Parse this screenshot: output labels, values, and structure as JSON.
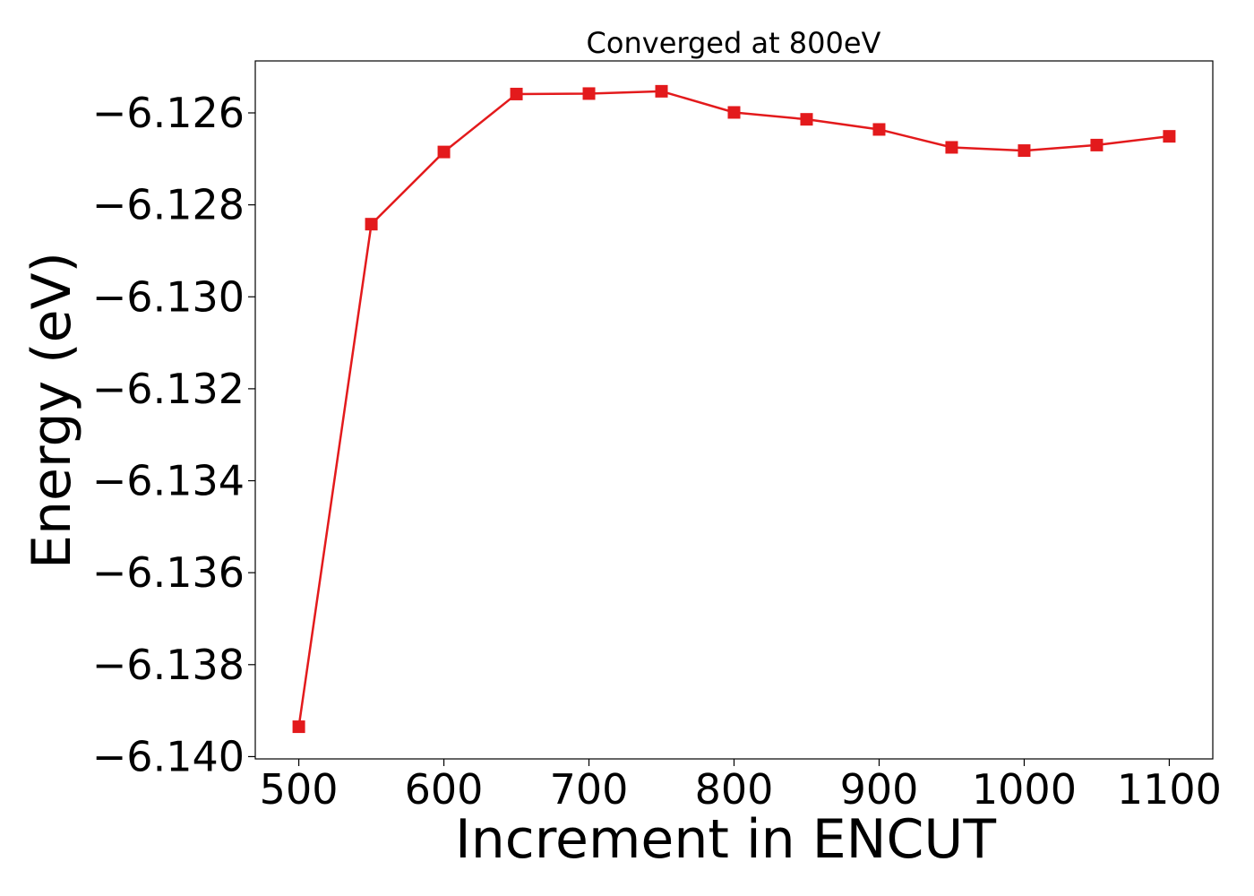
{
  "chart_data": {
    "type": "line",
    "title": "Converged at 800eV",
    "xlabel": "Increment in ENCUT",
    "ylabel": "Energy (eV)",
    "xlim": [
      470,
      1130
    ],
    "ylim": [
      -6.14005,
      -6.12487
    ],
    "xticks": [
      500,
      600,
      700,
      800,
      900,
      1000,
      1100
    ],
    "xtick_labels": [
      "500",
      "600",
      "700",
      "800",
      "900",
      "1000",
      "1100"
    ],
    "yticks": [
      -6.126,
      -6.128,
      -6.13,
      -6.132,
      -6.134,
      -6.136,
      -6.138,
      -6.14
    ],
    "ytick_labels": [
      "−6.126",
      "−6.128",
      "−6.130",
      "−6.132",
      "−6.134",
      "−6.136",
      "−6.138",
      "−6.140"
    ],
    "grid": false,
    "series": [
      {
        "color": "#e31a1c",
        "marker": "square",
        "x": [
          500,
          550,
          600,
          650,
          700,
          750,
          800,
          850,
          900,
          950,
          1000,
          1050,
          1100
        ],
        "y": [
          -6.13935,
          -6.12842,
          -6.12685,
          -6.12559,
          -6.12558,
          -6.12553,
          -6.12599,
          -6.12614,
          -6.12636,
          -6.12675,
          -6.12682,
          -6.1267,
          -6.12651
        ]
      }
    ]
  }
}
